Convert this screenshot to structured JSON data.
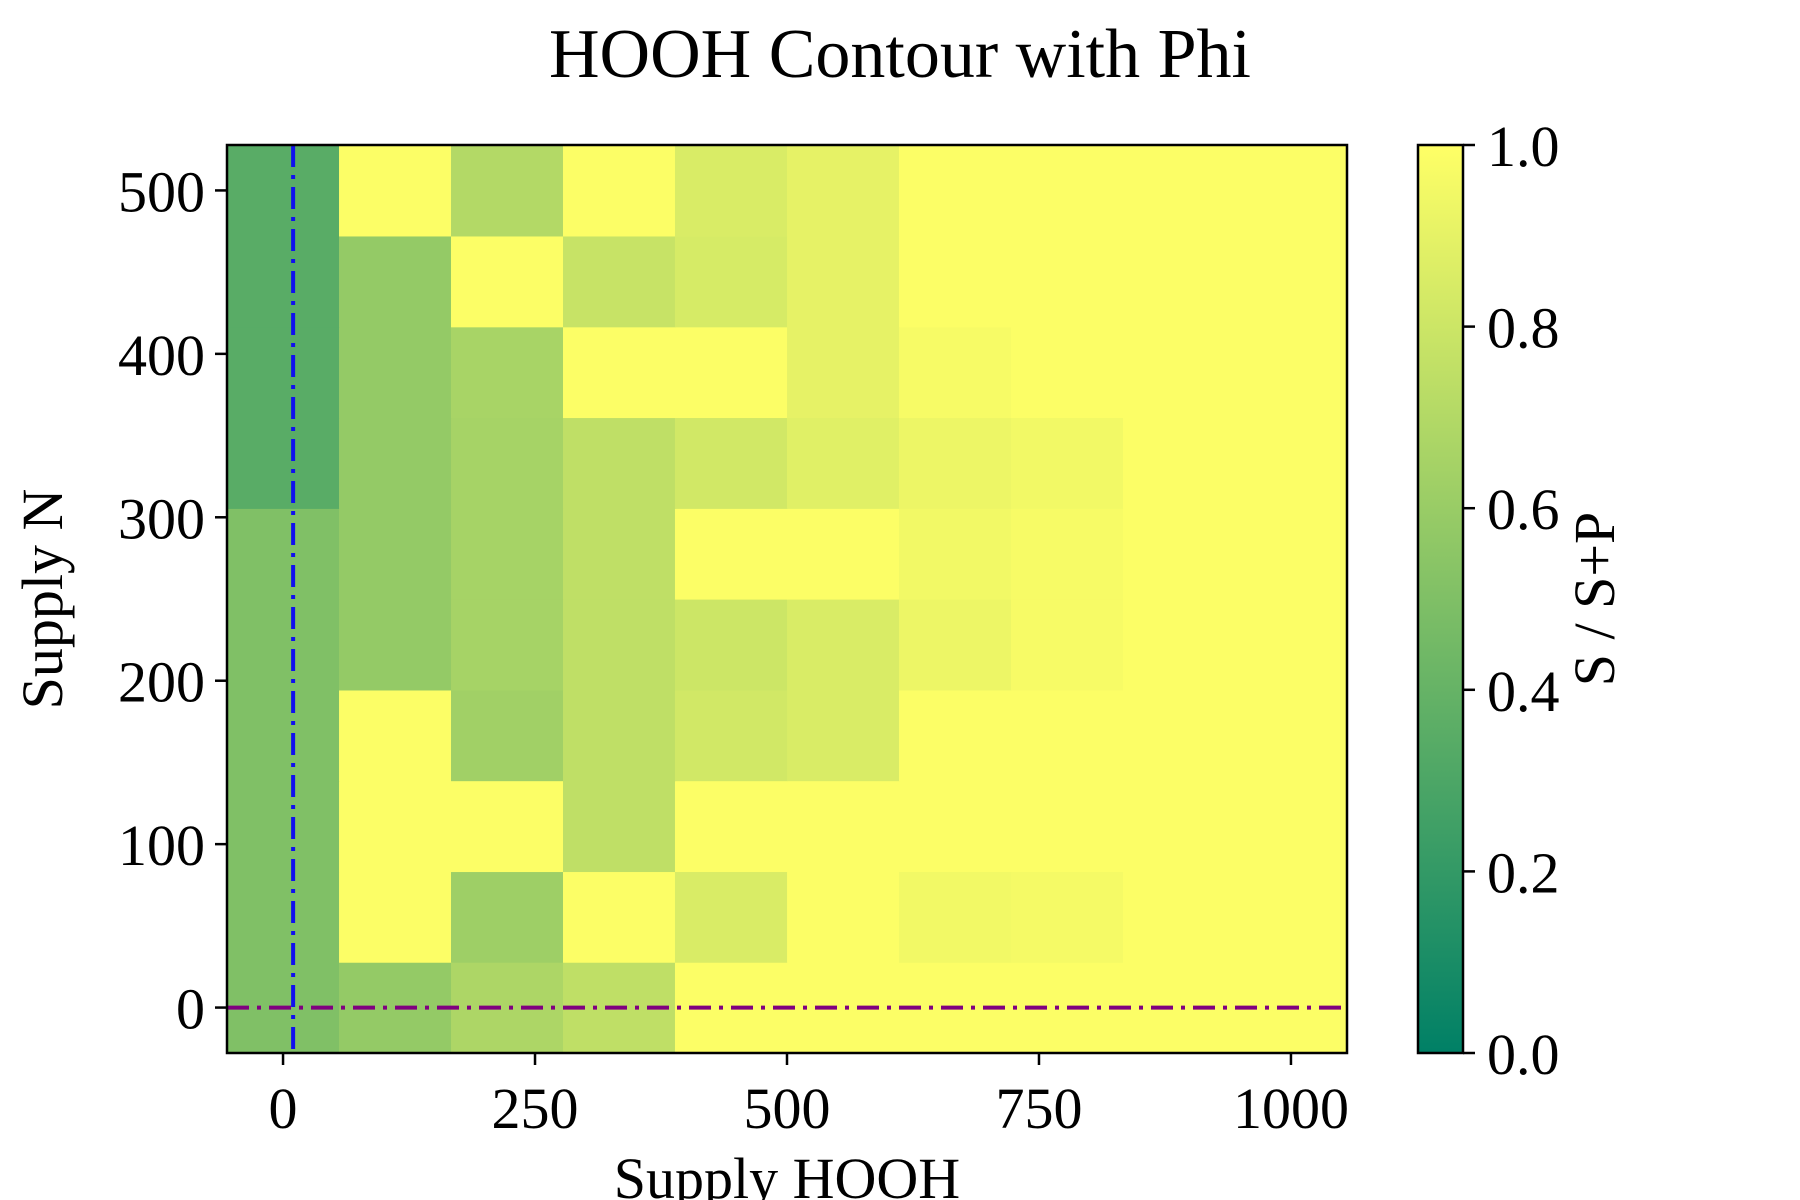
{
  "chart_data": {
    "type": "heatmap",
    "title": "HOOH Contour with Phi",
    "xlabel": "Supply HOOH",
    "ylabel": "Supply N",
    "x": [
      0,
      111.1,
      222.2,
      333.3,
      444.4,
      555.6,
      666.7,
      777.8,
      888.9,
      1000
    ],
    "y": [
      0,
      55.6,
      111.1,
      166.7,
      222.2,
      277.8,
      333.3,
      388.9,
      444.4,
      500
    ],
    "xlim": [
      -55.6,
      1055.6
    ],
    "ylim": [
      -27.8,
      527.8
    ],
    "xticks": [
      0,
      250,
      500,
      750,
      1000
    ],
    "xtick_labels": [
      "0",
      "250",
      "500",
      "750",
      "1000"
    ],
    "yticks": [
      0,
      100,
      200,
      300,
      400,
      500
    ],
    "ytick_labels": [
      "0",
      "100",
      "200",
      "300",
      "400",
      "500"
    ],
    "z": [
      [
        0.5,
        0.58,
        0.68,
        0.75,
        0.99,
        0.99,
        0.99,
        0.99,
        0.99,
        0.99
      ],
      [
        0.5,
        0.99,
        0.62,
        0.99,
        0.85,
        0.99,
        0.95,
        0.96,
        0.99,
        0.99
      ],
      [
        0.5,
        0.99,
        0.99,
        0.75,
        0.99,
        0.99,
        0.99,
        0.99,
        0.99,
        0.99
      ],
      [
        0.5,
        0.99,
        0.63,
        0.75,
        0.82,
        0.85,
        0.99,
        0.99,
        0.99,
        0.99
      ],
      [
        0.5,
        0.58,
        0.65,
        0.75,
        0.8,
        0.85,
        0.93,
        0.97,
        0.99,
        0.99
      ],
      [
        0.5,
        0.58,
        0.65,
        0.75,
        0.99,
        0.99,
        0.95,
        0.97,
        0.99,
        0.99
      ],
      [
        0.35,
        0.58,
        0.65,
        0.75,
        0.82,
        0.88,
        0.93,
        0.95,
        0.99,
        0.99
      ],
      [
        0.35,
        0.58,
        0.66,
        0.99,
        0.99,
        0.9,
        0.97,
        0.99,
        0.99,
        0.99
      ],
      [
        0.35,
        0.58,
        0.99,
        0.78,
        0.84,
        0.9,
        0.99,
        0.99,
        0.99,
        0.99
      ],
      [
        0.35,
        0.99,
        0.7,
        0.99,
        0.85,
        0.9,
        0.99,
        0.99,
        0.99,
        0.99
      ]
    ],
    "vline": {
      "x": 10,
      "color": "#1010ee",
      "style": "dash-dot"
    },
    "hline": {
      "y": 0,
      "color": "#800080",
      "style": "dash-dot"
    },
    "colormap": "summer",
    "colorbar": {
      "label": "S / S+P",
      "range": [
        0.0,
        1.0
      ],
      "ticks": [
        0.0,
        0.2,
        0.4,
        0.6,
        0.8,
        1.0
      ],
      "tick_labels": [
        "0.0",
        "0.2",
        "0.4",
        "0.6",
        "0.8",
        "1.0"
      ],
      "color_low": "#008066",
      "color_high": "#ffff66"
    },
    "grid": false,
    "legend": "none"
  }
}
